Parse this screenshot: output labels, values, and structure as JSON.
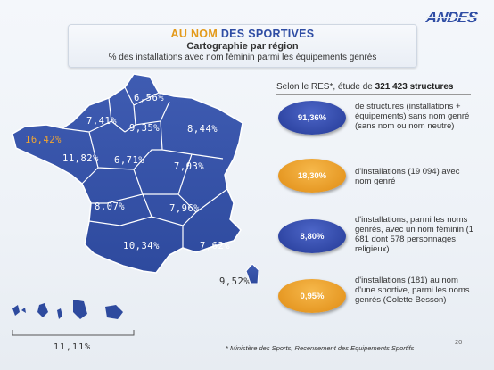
{
  "logo": "ANDES",
  "title": {
    "line1_a": "AU NOM",
    "line1_b": " DES SPORTIVES",
    "line2": "Cartographie par région",
    "line3": "% des installations avec nom féminin parmi les équipements genrés"
  },
  "regions": [
    {
      "id": "hauts-de-france",
      "value": "6,56%"
    },
    {
      "id": "normandie",
      "value": "7,41%"
    },
    {
      "id": "ile-de-france",
      "value": "9,35%"
    },
    {
      "id": "grand-est",
      "value": "8,44%"
    },
    {
      "id": "bretagne",
      "value": "16,42%"
    },
    {
      "id": "pays-de-la-loire",
      "value": "11,82%"
    },
    {
      "id": "centre-val-de-loire",
      "value": "6,71%"
    },
    {
      "id": "bourgogne-franche-comte",
      "value": "7,03%"
    },
    {
      "id": "nouvelle-aquitaine",
      "value": "8,07%"
    },
    {
      "id": "auvergne-rhone-alpes",
      "value": "7,96%"
    },
    {
      "id": "occitanie",
      "value": "10,34%"
    },
    {
      "id": "paca",
      "value": "7,62%"
    },
    {
      "id": "corse",
      "value": "9,52%"
    }
  ],
  "domtom_value": "11,11%",
  "study": {
    "prefix": "Selon le RES*, étude de ",
    "count": "321 423 structures"
  },
  "stats": [
    {
      "value": "91,36%",
      "color": "blue",
      "text": "de structures (installations + équipements) sans nom genré (sans nom ou nom neutre)"
    },
    {
      "value": "18,30%",
      "color": "orange",
      "text": "d'installations (19 094) avec nom genré"
    },
    {
      "value": "8,80%",
      "color": "blue",
      "text": "d'installations, parmi les noms genrés, avec un nom féminin (1 681 dont 578 personnages religieux)"
    },
    {
      "value": "0,95%",
      "color": "orange",
      "text": "d'installations (181) au nom d'une sportive, parmi les noms genrés (Colette Besson)"
    }
  ],
  "footnote": "* Ministère des Sports, Recensement des Equipements Sportifs",
  "page_number": "20",
  "colors": {
    "map_blue": "#3552a8",
    "accent_orange": "#e39a1b"
  }
}
